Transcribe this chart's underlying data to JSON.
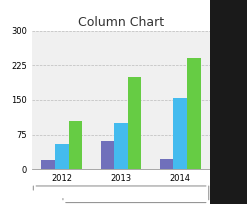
{
  "title": "Column Chart",
  "categories": [
    "2012",
    "2013",
    "2014"
  ],
  "series": {
    "Product 1": [
      20,
      62,
      22
    ],
    "Product 2": [
      55,
      100,
      155
    ],
    "Product 3": [
      105,
      200,
      240
    ]
  },
  "colors": {
    "Product 1": "#7070bb",
    "Product 2": "#44bbee",
    "Product 3": "#66cc44"
  },
  "ylim": [
    0,
    300
  ],
  "yticks": [
    0,
    75,
    150,
    225,
    300
  ],
  "background_color": "#ffffff",
  "plot_bg": "#f0f0f0",
  "grid_color": "#bbbbbb",
  "title_fontsize": 9,
  "legend_fontsize": 6,
  "tick_fontsize": 6,
  "bar_width": 0.23
}
